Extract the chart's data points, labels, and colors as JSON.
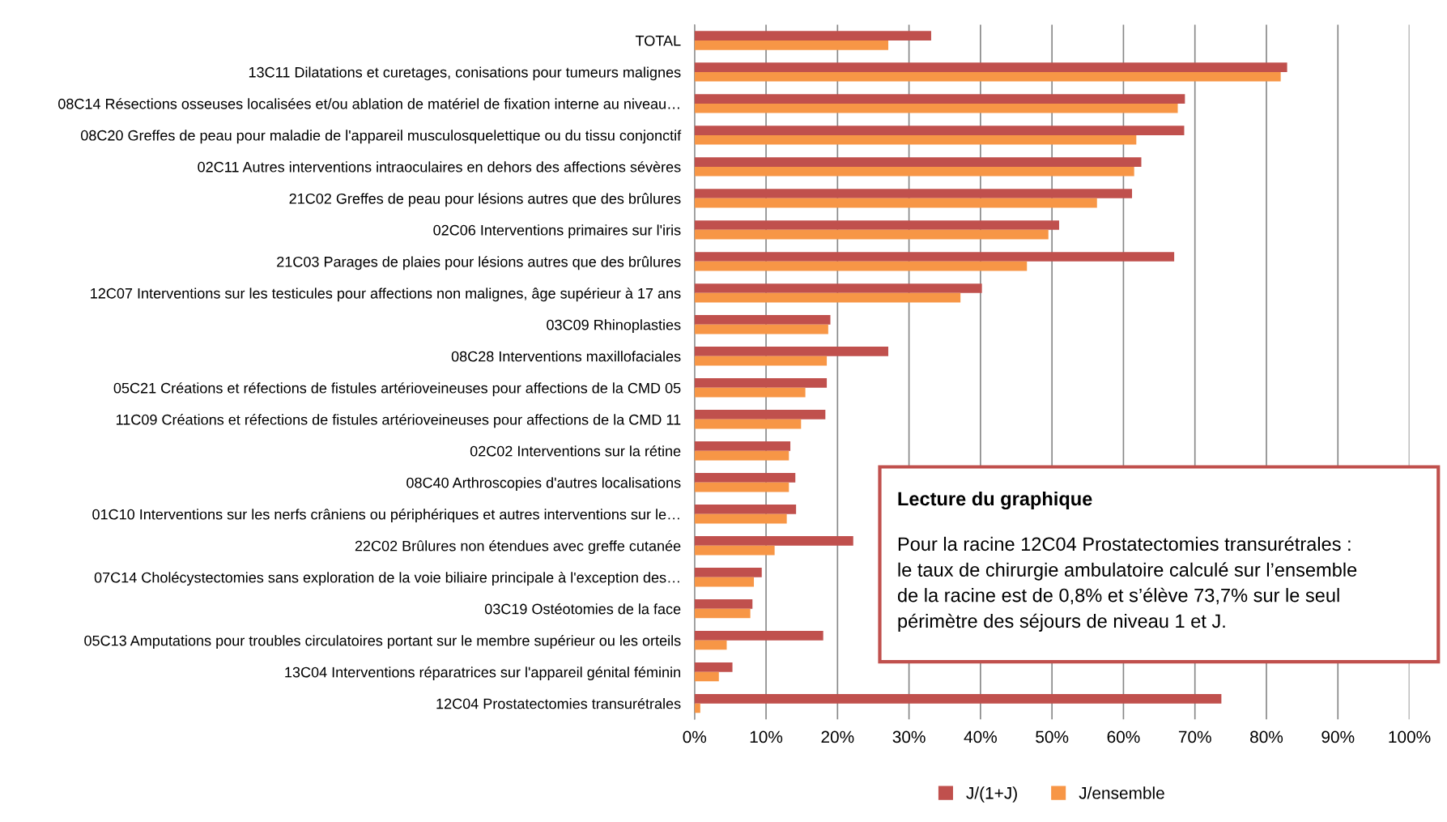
{
  "chart_data": {
    "type": "bar",
    "orientation": "horizontal",
    "categories": [
      "TOTAL",
      "13C11 Dilatations et curetages, conisations pour tumeurs malignes",
      "08C14 Résections osseuses localisées et/ou ablation de matériel de fixation interne au niveau…",
      "08C20 Greffes de peau pour maladie de l'appareil musculosquelettique ou du tissu conjonctif",
      "02C11 Autres interventions intraoculaires en dehors des affections sévères",
      "21C02 Greffes de peau pour lésions autres que des brûlures",
      "02C06 Interventions primaires sur l'iris",
      "21C03 Parages de plaies pour lésions autres que des brûlures",
      "12C07 Interventions sur les testicules pour affections non malignes, âge supérieur à 17 ans",
      "03C09 Rhinoplasties",
      "08C28 Interventions maxillofaciales",
      "05C21 Créations et réfections de fistules artérioveineuses pour affections de la CMD 05",
      "11C09 Créations et réfections de fistules artérioveineuses pour affections de la CMD 11",
      "02C02 Interventions sur la rétine",
      "08C40 Arthroscopies d'autres localisations",
      "01C10 Interventions sur les nerfs crâniens ou périphériques et autres interventions sur le…",
      "22C02 Brûlures non étendues avec greffe cutanée",
      "07C14 Cholécystectomies sans exploration de la voie biliaire principale à l'exception des…",
      "03C19 Ostéotomies de la face",
      "05C13 Amputations pour troubles circulatoires portant sur le membre supérieur ou les orteils",
      "13C04 Interventions réparatrices sur l'appareil génital féminin",
      "12C04 Prostatectomies transurétrales"
    ],
    "series": [
      {
        "name": "J/(1+J)",
        "color": "#c0504d",
        "values": [
          33.1,
          82.9,
          68.6,
          68.5,
          62.5,
          61.2,
          51.0,
          67.1,
          40.2,
          19.0,
          27.1,
          18.5,
          18.3,
          13.4,
          14.1,
          14.2,
          22.2,
          9.4,
          8.1,
          18.0,
          5.3,
          73.7
        ]
      },
      {
        "name": "J/ensemble",
        "color": "#f79646",
        "values": [
          27.1,
          82.0,
          67.6,
          61.8,
          61.5,
          56.3,
          49.5,
          46.5,
          37.2,
          18.7,
          18.5,
          15.5,
          14.9,
          13.2,
          13.2,
          12.9,
          11.2,
          8.3,
          7.8,
          4.5,
          3.4,
          0.8
        ]
      }
    ],
    "xlim": [
      0,
      100
    ],
    "xticks": [
      {
        "value": 0,
        "label": "0%"
      },
      {
        "value": 10,
        "label": "10%"
      },
      {
        "value": 20,
        "label": "20%"
      },
      {
        "value": 30,
        "label": "30%"
      },
      {
        "value": 40,
        "label": "40%"
      },
      {
        "value": 50,
        "label": "50%"
      },
      {
        "value": 60,
        "label": "60%"
      },
      {
        "value": 70,
        "label": "70%"
      },
      {
        "value": 80,
        "label": "80%"
      },
      {
        "value": 90,
        "label": "90%"
      },
      {
        "value": 100,
        "label": "100%"
      }
    ],
    "grid": "x",
    "legend": "bottom",
    "annotations": [
      "Lecture du graphique",
      "Pour la racine 12C04 Prostatectomies transurétrales :\nle taux de chirurgie ambulatoire calculé sur l’ensemble\nde la racine est de 0,8% et s’élève 73,7% sur le seul\npérimètre des séjours de niveau 1 et J."
    ]
  }
}
